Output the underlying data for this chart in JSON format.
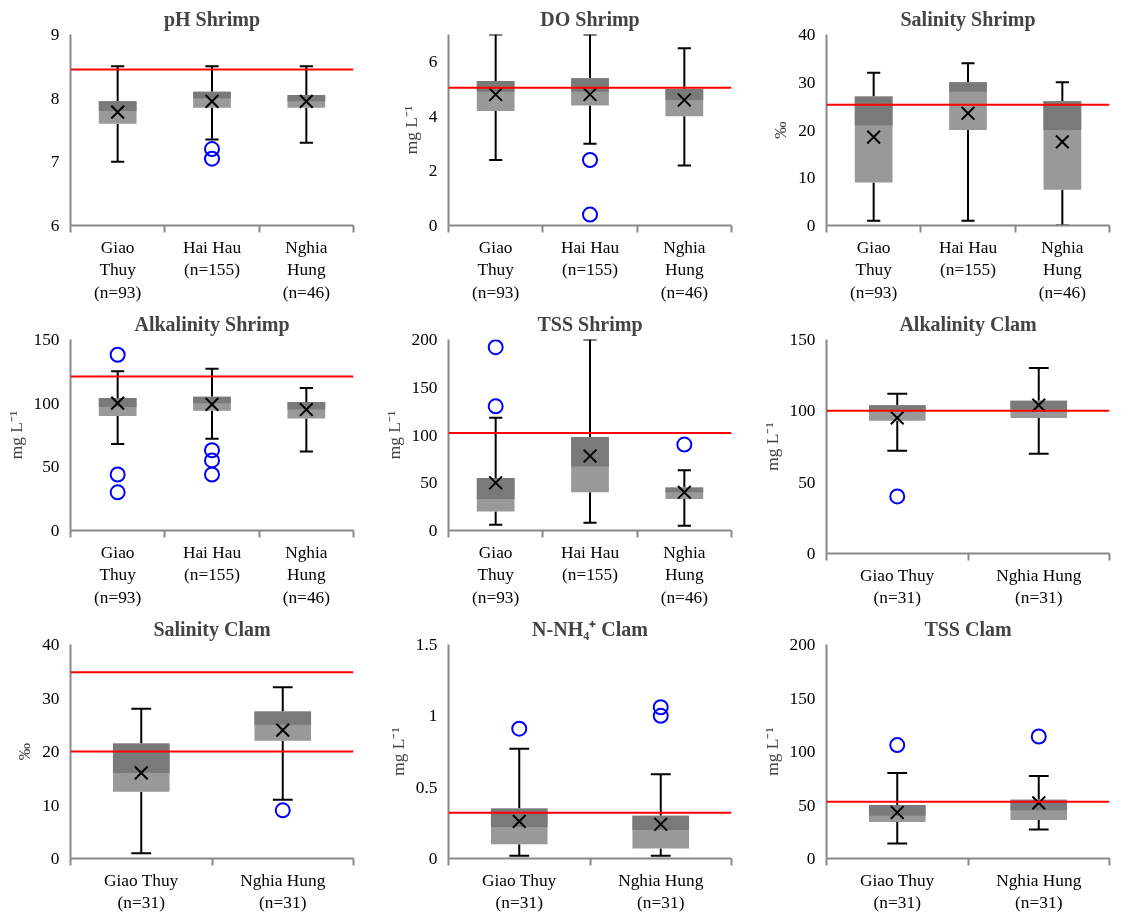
{
  "chart_data": [
    {
      "type": "box",
      "title": "pH Shrimp",
      "categories": [
        "Giao\nThuy\n(n=93)",
        "Hai Hau\n(n=155)",
        "Nghia\nHung\n(n=46)"
      ],
      "ylim": [
        6,
        9
      ],
      "yticks": [
        6,
        7,
        8,
        9
      ],
      "boxes": [
        {
          "low": 7.0,
          "q1": 7.6,
          "median": 7.8,
          "q3": 7.95,
          "high": 8.5,
          "mean": 7.78
        },
        {
          "low": 7.35,
          "q1": 7.85,
          "median": 8.0,
          "q3": 8.1,
          "high": 8.5,
          "mean": 7.95,
          "outliers": [
            7.05,
            7.2
          ]
        },
        {
          "low": 7.3,
          "q1": 7.85,
          "median": 7.95,
          "q3": 8.05,
          "high": 8.5,
          "mean": 7.95
        }
      ],
      "ref_lines": [
        {
          "axis": "y",
          "value": 8.45,
          "color": "#ff0000"
        }
      ]
    },
    {
      "type": "box",
      "title": "DO Shrimp",
      "ylabel": "mg L⁻¹",
      "categories": [
        "Giao\nThuy\n(n=93)",
        "Hai Hau\n(n=155)",
        "Nghia\nHung\n(n=46)"
      ],
      "ylim": [
        0,
        7
      ],
      "yticks": [
        0,
        2,
        4,
        6
      ],
      "boxes": [
        {
          "low": 2.4,
          "q1": 4.2,
          "median": 4.9,
          "q3": 5.3,
          "high": 7.0,
          "mean": 4.8
        },
        {
          "low": 3.0,
          "q1": 4.4,
          "median": 4.9,
          "q3": 5.4,
          "high": 7.0,
          "mean": 4.8,
          "outliers": [
            2.4,
            0.4
          ]
        },
        {
          "low": 2.2,
          "q1": 4.0,
          "median": 4.6,
          "q3": 5.0,
          "high": 6.5,
          "mean": 4.6
        }
      ],
      "ref_lines": [
        {
          "axis": "y",
          "value": 5.05,
          "color": "#ff0000"
        }
      ]
    },
    {
      "type": "box",
      "title": "Salinity Shrimp",
      "ylabel": "‰",
      "categories": [
        "Giao\nThuy\n(n=93)",
        "Hai Hau\n(n=155)",
        "Nghia\nHung\n(n=46)"
      ],
      "ylim": [
        0,
        40
      ],
      "yticks": [
        0,
        10,
        20,
        30,
        40
      ],
      "boxes": [
        {
          "low": 1,
          "q1": 9,
          "median": 21,
          "q3": 27,
          "high": 32,
          "mean": 18.5
        },
        {
          "low": 1,
          "q1": 20,
          "median": 28,
          "q3": 30,
          "high": 34,
          "mean": 23.5
        },
        {
          "low": 0,
          "q1": 7.5,
          "median": 20,
          "q3": 26,
          "high": 30,
          "mean": 17.5
        }
      ],
      "ref_lines": [
        {
          "axis": "y",
          "value": 25.3,
          "color": "#ff0000"
        }
      ]
    },
    {
      "type": "box",
      "title": "Alkalinity Shrimp",
      "ylabel": "mg L⁻¹",
      "categories": [
        "Giao\nThuy\n(n=93)",
        "Hai Hau\n(n=155)",
        "Nghia\nHung\n(n=46)"
      ],
      "ylim": [
        0,
        150
      ],
      "yticks": [
        0,
        50,
        100,
        150
      ],
      "boxes": [
        {
          "low": 68,
          "q1": 90,
          "median": 97,
          "q3": 104,
          "high": 125,
          "mean": 100,
          "outliers": [
            138,
            44,
            30
          ]
        },
        {
          "low": 72,
          "q1": 94,
          "median": 100,
          "q3": 105,
          "high": 127,
          "mean": 99,
          "outliers": [
            63,
            55,
            44
          ]
        },
        {
          "low": 62,
          "q1": 88,
          "median": 95,
          "q3": 101,
          "high": 112,
          "mean": 95
        }
      ],
      "ref_lines": [
        {
          "axis": "y",
          "value": 121,
          "color": "#ff0000"
        }
      ]
    },
    {
      "type": "box",
      "title": "TSS Shrimp",
      "ylabel": "mg L⁻¹",
      "categories": [
        "Giao\nThuy\n(n=93)",
        "Hai Hau\n(n=155)",
        "Nghia\nHung\n(n=46)"
      ],
      "ylim": [
        0,
        200
      ],
      "yticks": [
        0,
        50,
        100,
        150,
        200
      ],
      "boxes": [
        {
          "low": 6,
          "q1": 20,
          "median": 33,
          "q3": 55,
          "high": 118,
          "mean": 50,
          "outliers": [
            192,
            130
          ]
        },
        {
          "low": 8,
          "q1": 40,
          "median": 67,
          "q3": 98,
          "high": 200,
          "mean": 78
        },
        {
          "low": 5,
          "q1": 33,
          "median": 40,
          "q3": 45,
          "high": 63,
          "mean": 40,
          "outliers": [
            90
          ]
        }
      ],
      "ref_lines": [
        {
          "axis": "y",
          "value": 102,
          "color": "#ff0000"
        }
      ]
    },
    {
      "type": "box",
      "title": "Alkalinity Clam",
      "ylabel": "mg L⁻¹",
      "categories": [
        "Giao Thuy\n(n=31)",
        "Nghia Hung\n(n=31)"
      ],
      "ylim": [
        0,
        150
      ],
      "yticks": [
        0,
        50,
        100,
        150
      ],
      "boxes": [
        {
          "low": 72,
          "q1": 93,
          "median": 100,
          "q3": 104,
          "high": 112,
          "mean": 95,
          "outliers": [
            40
          ]
        },
        {
          "low": 70,
          "q1": 95,
          "median": 101,
          "q3": 107,
          "high": 130,
          "mean": 104
        }
      ],
      "ref_lines": [
        {
          "axis": "y",
          "value": 100,
          "color": "#ff0000"
        }
      ]
    },
    {
      "type": "box",
      "title": "Salinity Clam",
      "ylabel": "‰",
      "categories": [
        "Giao Thuy\n(n=31)",
        "Nghia Hung\n(n=31)"
      ],
      "ylim": [
        0,
        40
      ],
      "yticks": [
        0,
        10,
        20,
        30,
        40
      ],
      "boxes": [
        {
          "low": 1,
          "q1": 12.5,
          "median": 16,
          "q3": 21.5,
          "high": 28,
          "mean": 16
        },
        {
          "low": 11,
          "q1": 22,
          "median": 25,
          "q3": 27.5,
          "high": 32,
          "mean": 24,
          "outliers": [
            9
          ]
        }
      ],
      "ref_lines": [
        {
          "axis": "y",
          "value": 34.8,
          "color": "#ff0000"
        },
        {
          "axis": "y",
          "value": 20,
          "color": "#ff0000"
        }
      ]
    },
    {
      "type": "box",
      "title": "N-NH₄⁺ Clam",
      "ylabel": "mg L⁻¹",
      "categories": [
        "Giao Thuy\n(n=31)",
        "Nghia Hung\n(n=31)"
      ],
      "ylim": [
        0,
        1.5
      ],
      "yticks": [
        0,
        0.5,
        1,
        1.5
      ],
      "boxes": [
        {
          "low": 0.02,
          "q1": 0.1,
          "median": 0.22,
          "q3": 0.35,
          "high": 0.77,
          "mean": 0.26,
          "outliers": [
            0.91
          ]
        },
        {
          "low": 0.02,
          "q1": 0.07,
          "median": 0.2,
          "q3": 0.3,
          "high": 0.59,
          "mean": 0.24,
          "outliers": [
            1.0,
            1.06
          ]
        }
      ],
      "ref_lines": [
        {
          "axis": "y",
          "value": 0.32,
          "color": "#ff0000"
        }
      ]
    },
    {
      "type": "box",
      "title": "TSS Clam",
      "ylabel": "mg L⁻¹",
      "categories": [
        "Giao Thuy\n(n=31)",
        "Nghia Hung\n(n=31)"
      ],
      "ylim": [
        0,
        200
      ],
      "yticks": [
        0,
        50,
        100,
        150,
        200
      ],
      "boxes": [
        {
          "low": 14,
          "q1": 34,
          "median": 40,
          "q3": 50,
          "high": 80,
          "mean": 43,
          "outliers": [
            106
          ]
        },
        {
          "low": 27,
          "q1": 36,
          "median": 45,
          "q3": 55,
          "high": 77,
          "mean": 52,
          "outliers": [
            114
          ]
        }
      ],
      "ref_lines": [
        {
          "axis": "y",
          "value": 53,
          "color": "#ff0000"
        }
      ]
    }
  ]
}
